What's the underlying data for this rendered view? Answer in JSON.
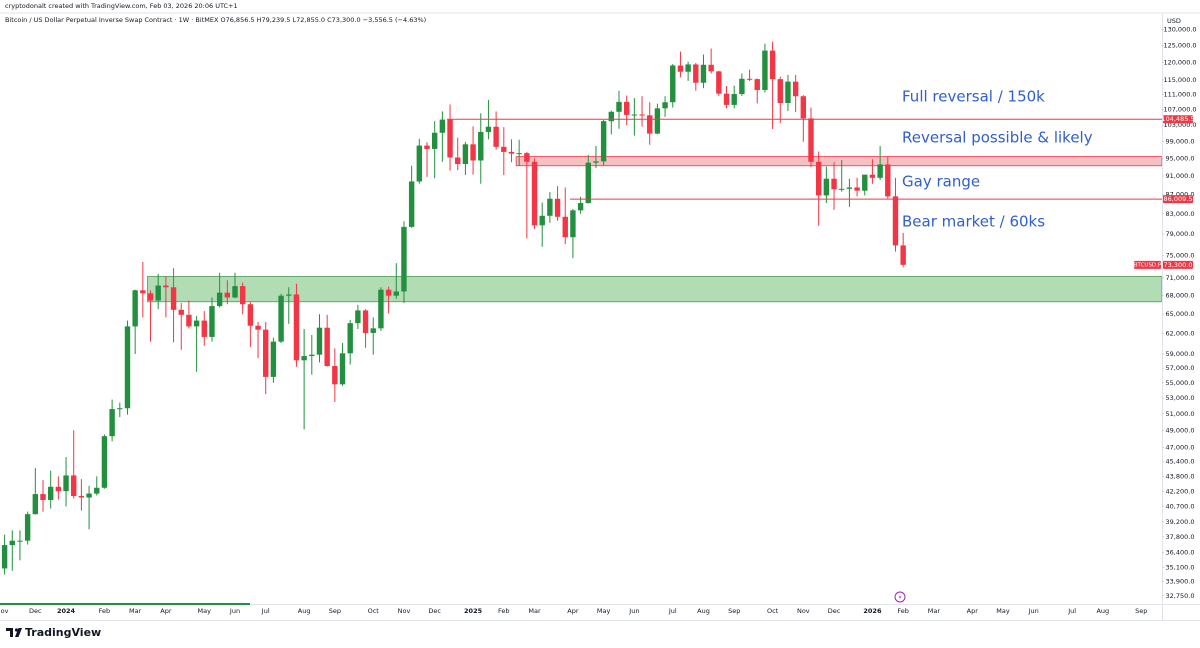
{
  "header": {
    "credit": "cryptodonalt created with TradingView.com, Feb 03, 2026 20:06 UTC+1",
    "brand": "TradingView"
  },
  "chart_data": {
    "type": "candlestick",
    "title": "Bitcoin / US Dollar Perpetual Inverse Swap Contract · 1W · BitMEX  O76,856.5  H79,239.5  L72,855.0  C73,300.0  −3,556.5 (−4.63%)",
    "currency": "USD",
    "log_scale": true,
    "up_color": "#23903f",
    "down_color": "#f23645",
    "categories": [
      "ov",
      null,
      null,
      null,
      "Dec",
      null,
      null,
      null,
      "2024",
      null,
      null,
      null,
      null,
      "Feb",
      null,
      null,
      null,
      "Mar",
      null,
      null,
      null,
      "Apr",
      null,
      null,
      null,
      null,
      "May",
      null,
      null,
      null,
      "Jun",
      null,
      null,
      null,
      "Jul",
      null,
      null,
      null,
      null,
      "Aug",
      null,
      null,
      null,
      "Sep",
      null,
      null,
      null,
      null,
      "Oct",
      null,
      null,
      null,
      "Nov",
      null,
      null,
      null,
      "Dec",
      null,
      null,
      null,
      null,
      "2025",
      null,
      null,
      null,
      "Feb",
      null,
      null,
      null,
      "Mar",
      null,
      null,
      null,
      null,
      "Apr",
      null,
      null,
      null,
      "May",
      null,
      null,
      null,
      "Jun",
      null,
      null,
      null,
      null,
      "Jul",
      null,
      null,
      null,
      "Aug",
      null,
      null,
      null,
      "Sep",
      null,
      null,
      null,
      null,
      "Oct",
      null,
      null,
      null,
      "Nov",
      null,
      null,
      null,
      "Dec",
      null,
      null,
      null,
      null,
      "2026",
      null,
      null,
      null,
      "Feb",
      null,
      null,
      null,
      "Mar",
      null,
      null,
      null,
      null,
      "Apr",
      null,
      null,
      null,
      "May",
      null,
      null,
      null,
      "Jun",
      null,
      null,
      null,
      null,
      "Jul",
      null,
      null,
      null,
      "Aug",
      null,
      null,
      null,
      null,
      "Sep",
      null,
      null
    ],
    "open": [
      35000,
      37050,
      37450,
      37450,
      39950,
      41950,
      41350,
      42700,
      42250,
      43900,
      41750,
      41600,
      42000,
      42600,
      48300,
      51600,
      51700,
      63100,
      68900,
      68400,
      67200,
      69700,
      69400,
      65700,
      64900,
      63100,
      64000,
      61500,
      66300,
      68500,
      67700,
      69600,
      66600,
      63200,
      62600,
      55800,
      60800,
      68000,
      68200,
      58100,
      58700,
      58900,
      62900,
      57300,
      54800,
      59100,
      63600,
      65600,
      62100,
      62800,
      69000,
      68000,
      68700,
      80400,
      89800,
      98000,
      97200,
      101100,
      104400,
      95200,
      93700,
      98300,
      94500,
      101300,
      102600,
      97700,
      96500,
      96100,
      96200,
      94200,
      80700,
      82600,
      86100,
      82400,
      78400,
      83700,
      85200,
      94000,
      94300,
      104000,
      106400,
      109000,
      105600,
      105700,
      105500,
      100900,
      107300,
      108900,
      119100,
      117300,
      119400,
      114200,
      119300,
      117400,
      111200,
      108200,
      111100,
      115300,
      115200,
      112200,
      123500,
      115200,
      108700,
      114500,
      110500,
      104700,
      94200,
      86800,
      90400,
      88100,
      88200,
      88500,
      87800,
      91300,
      90600,
      93600,
      86600,
      76856.5,
      null,
      null,
      null,
      null,
      null,
      null,
      null,
      null,
      null,
      null,
      null,
      null,
      null,
      null,
      null,
      null,
      null,
      null,
      null,
      null,
      null,
      null,
      null,
      null,
      null,
      null,
      null,
      null,
      null,
      null,
      null,
      null,
      null
    ],
    "high": [
      38000,
      38400,
      38400,
      40200,
      44700,
      43400,
      44400,
      43800,
      45900,
      49000,
      43500,
      42800,
      43800,
      48500,
      52800,
      52400,
      64000,
      69000,
      73800,
      68900,
      71700,
      71300,
      72700,
      66800,
      67200,
      64700,
      65500,
      67700,
      71900,
      70600,
      71900,
      70200,
      67000,
      63800,
      63800,
      61400,
      68300,
      69400,
      70000,
      62700,
      61800,
      65000,
      64900,
      59800,
      60600,
      64100,
      66500,
      65800,
      64500,
      69400,
      69500,
      73600,
      81500,
      93300,
      99600,
      98800,
      104000,
      106500,
      108300,
      99900,
      98900,
      102700,
      106000,
      109500,
      106500,
      102500,
      99500,
      99400,
      96500,
      95000,
      85300,
      87500,
      88800,
      88500,
      84000,
      86500,
      95800,
      97900,
      104300,
      106700,
      112000,
      110700,
      110000,
      110500,
      108900,
      108500,
      110500,
      119500,
      123200,
      120200,
      119800,
      122300,
      124100,
      117600,
      113300,
      113400,
      116800,
      117900,
      115400,
      125600,
      126200,
      115900,
      116400,
      116400,
      110800,
      107500,
      96600,
      93100,
      94100,
      94600,
      90400,
      90600,
      91000,
      94800,
      97900,
      95500,
      90600,
      79239.5,
      null,
      null,
      null,
      null,
      null,
      null,
      null,
      null,
      null,
      null,
      null,
      null,
      null,
      null,
      null,
      null,
      null,
      null,
      null,
      null,
      null,
      null,
      null,
      null,
      null,
      null,
      null,
      null,
      null,
      null,
      null,
      null,
      null
    ],
    "low": [
      34500,
      34800,
      35700,
      37100,
      39900,
      40200,
      40500,
      41400,
      40700,
      41500,
      40300,
      38500,
      41800,
      42500,
      47700,
      50600,
      50900,
      59000,
      64500,
      60800,
      65800,
      64500,
      60700,
      59600,
      62800,
      56500,
      60200,
      60800,
      66100,
      66600,
      67600,
      65000,
      60000,
      58400,
      53500,
      55000,
      60600,
      63500,
      57200,
      49100,
      56100,
      57800,
      57200,
      52500,
      54600,
      57500,
      62700,
      59900,
      58900,
      62400,
      65100,
      67500,
      66800,
      80200,
      89300,
      90800,
      90500,
      94200,
      92200,
      92300,
      91200,
      91300,
      89300,
      99500,
      97000,
      91200,
      94100,
      93300,
      78200,
      80000,
      76600,
      81200,
      81600,
      77100,
      74500,
      83000,
      85100,
      92800,
      93400,
      100700,
      102100,
      103000,
      100400,
      102600,
      98200,
      100700,
      105100,
      107500,
      115700,
      114700,
      112000,
      112700,
      116800,
      110600,
      107300,
      107300,
      110600,
      114700,
      108600,
      111500,
      102000,
      103500,
      106600,
      106300,
      98900,
      93000,
      80600,
      85200,
      83800,
      87600,
      84400,
      86600,
      86800,
      89300,
      90100,
      86100,
      75700,
      72855,
      null,
      null,
      null,
      null,
      null,
      null,
      null,
      null,
      null,
      null,
      null,
      null,
      null,
      null,
      null,
      null,
      null,
      null,
      null,
      null,
      null,
      null,
      null,
      null,
      null,
      null,
      null,
      null,
      null,
      null,
      null,
      null,
      null
    ],
    "close": [
      37050,
      37450,
      37450,
      39950,
      41950,
      41350,
      42700,
      42250,
      43900,
      41750,
      41600,
      42000,
      42600,
      48300,
      51600,
      51700,
      63100,
      68900,
      68400,
      67200,
      69700,
      69400,
      65700,
      64900,
      63100,
      64000,
      61500,
      66300,
      68500,
      67700,
      69600,
      66600,
      63200,
      62600,
      55800,
      60800,
      68000,
      68200,
      58100,
      58700,
      58900,
      62900,
      57300,
      54800,
      59100,
      63600,
      65600,
      62100,
      62800,
      69000,
      68000,
      68700,
      80400,
      89800,
      98000,
      97200,
      101100,
      104400,
      95200,
      93700,
      98300,
      94500,
      101300,
      102600,
      97700,
      96500,
      96100,
      96200,
      94200,
      80700,
      82600,
      86100,
      82400,
      78400,
      83700,
      85200,
      94000,
      94300,
      104000,
      106400,
      109000,
      105600,
      105700,
      105500,
      100900,
      107300,
      108900,
      119100,
      117300,
      119400,
      114200,
      119300,
      117400,
      111200,
      108200,
      111100,
      115300,
      115200,
      112200,
      123500,
      115200,
      108700,
      114500,
      110500,
      104700,
      94200,
      86800,
      90400,
      88100,
      88200,
      88500,
      87800,
      91300,
      90600,
      93600,
      86600,
      76856.5,
      73300,
      null,
      null,
      null,
      null,
      null,
      null,
      null,
      null,
      null,
      null,
      null,
      null,
      null,
      null,
      null,
      null,
      null,
      null,
      null,
      null,
      null,
      null,
      null,
      null,
      null,
      null,
      null,
      null,
      null,
      null,
      null,
      null,
      null
    ],
    "ylim": [
      32100,
      135000
    ],
    "yticks": [
      {
        "value": 130000,
        "label": "130,000.0"
      },
      {
        "value": 125000,
        "label": "125,000.0"
      },
      {
        "value": 120000,
        "label": "120,000.0"
      },
      {
        "value": 115000,
        "label": "115,000.0"
      },
      {
        "value": 111000,
        "label": "111,000.0"
      },
      {
        "value": 107000,
        "label": "107,000.0"
      },
      {
        "value": 103000,
        "label": "103,000.0"
      },
      {
        "value": 99000,
        "label": "99,000.0"
      },
      {
        "value": 95000,
        "label": "95,000.0"
      },
      {
        "value": 91000,
        "label": "91,000.0"
      },
      {
        "value": 87000,
        "label": "87,000.0"
      },
      {
        "value": 83000,
        "label": "83,000.0"
      },
      {
        "value": 79000,
        "label": "79,000.0"
      },
      {
        "value": 75000,
        "label": "75,000.0"
      },
      {
        "value": 71000,
        "label": "71,000.0"
      },
      {
        "value": 68000,
        "label": "68,000.0"
      },
      {
        "value": 65000,
        "label": "65,000.0"
      },
      {
        "value": 62000,
        "label": "62,000.0"
      },
      {
        "value": 59000,
        "label": "59,000.0"
      },
      {
        "value": 57000,
        "label": "57,000.0"
      },
      {
        "value": 55000,
        "label": "55,000.0"
      },
      {
        "value": 53000,
        "label": "53,000.0"
      },
      {
        "value": 51000,
        "label": "51,000.0"
      },
      {
        "value": 49000,
        "label": "49,000.0"
      },
      {
        "value": 47000,
        "label": "47,000.0"
      },
      {
        "value": 45400,
        "label": "45,400.0"
      },
      {
        "value": 43800,
        "label": "43,800.0"
      },
      {
        "value": 42200,
        "label": "42,200.0"
      },
      {
        "value": 40700,
        "label": "40,700.0"
      },
      {
        "value": 39200,
        "label": "39,200.0"
      },
      {
        "value": 37800,
        "label": "37,800.0"
      },
      {
        "value": 36400,
        "label": "36,400.0"
      },
      {
        "value": 35100,
        "label": "35,100.0"
      },
      {
        "value": 33900,
        "label": "33,900.0"
      },
      {
        "value": 32750,
        "label": "32,750.0"
      }
    ],
    "zones": [
      {
        "low": 67000,
        "high": 71250,
        "color": "#a5d6a7",
        "border": "#4c9a55"
      },
      {
        "low": 93300,
        "high": 95400,
        "color": "#f5b5b9",
        "border": "#f23645"
      }
    ],
    "levels": [
      {
        "value": 104485.5,
        "label": "104,485.5",
        "color": "#f23645"
      },
      {
        "value": 86009.5,
        "label": "86,009.5",
        "color": "#f23645"
      }
    ],
    "last_price": {
      "symbol": "BTCUSD.P",
      "value": 73300,
      "label": "73,300.0",
      "color": "#f23645"
    },
    "annotations": [
      "Full reversal / 150k",
      "Reversal possible & likely",
      "Gay range",
      "Bear market / 60ks"
    ]
  }
}
